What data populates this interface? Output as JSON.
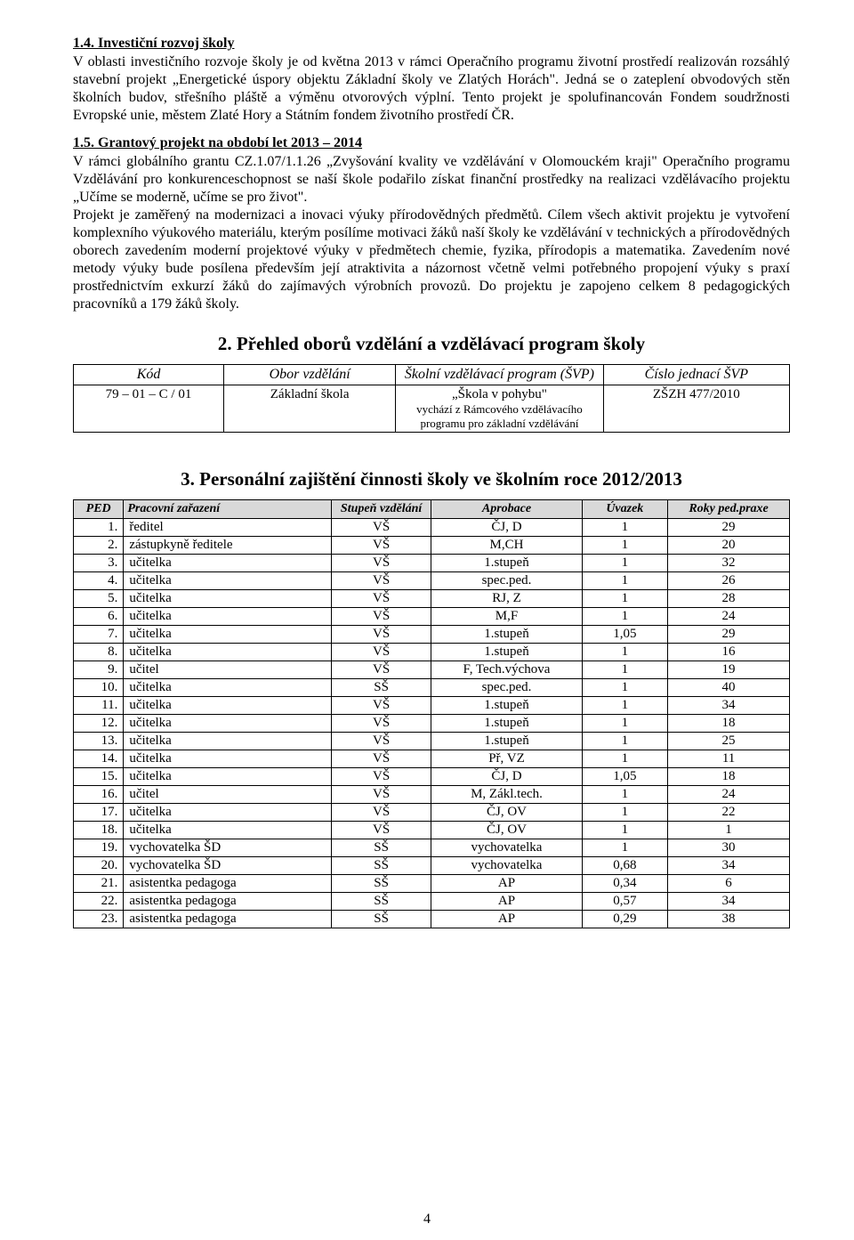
{
  "section14": {
    "heading": "1.4. Investiční rozvoj školy",
    "body": "V oblasti investičního rozvoje školy je od května 2013 v rámci Operačního programu životní prostředí realizován rozsáhlý stavební projekt „Energetické úspory objektu Základní školy ve Zlatých Horách\". Jedná se o zateplení obvodových stěn školních budov, střešního pláště a výměnu otvorových výplní. Tento projekt je spolufinancován Fondem soudržnosti Evropské unie, městem Zlaté Hory a Státním fondem životního prostředí ČR."
  },
  "section15": {
    "heading": "1.5. Grantový projekt na období let 2013 – 2014",
    "body1": "V rámci globálního grantu CZ.1.07/1.1.26 „Zvyšování kvality ve vzdělávání v Olomouckém kraji\" Operačního programu Vzdělávání pro konkurenceschopnost se naší škole podařilo získat finanční prostředky na realizaci vzdělávacího projektu „Učíme se moderně, učíme se pro život\".",
    "body2": "Projekt je zaměřený na modernizaci a inovaci výuky přírodovědných předmětů. Cílem všech aktivit projektu je vytvoření komplexního výukového materiálu, kterým posílíme motivaci žáků naší školy ke vzdělávání v technických a přírodovědných oborech zavedením moderní projektové výuky v předmětech chemie, fyzika, přírodopis a matematika. Zavedením nové metody výuky bude posílena především její atraktivita a názornost včetně velmi potřebného propojení výuky s praxí prostřednictvím exkurzí žáků do zajímavých výrobních provozů. Do projektu je zapojeno celkem 8 pedagogických pracovníků a 179 žáků školy."
  },
  "section2": {
    "heading": "2.  Přehled oborů vzdělání a vzdělávací program školy",
    "header": {
      "kod": "Kód",
      "obor": "Obor vzdělání",
      "svp": "Školní vzdělávací program (ŠVP)",
      "cislo": "Číslo jednací ŠVP"
    },
    "row": {
      "kod": "79 – 01 – C / 01",
      "obor": "Základní škola",
      "svp_main": "„Škola v pohybu\"",
      "svp_sub": "vychází z Rámcového vzdělávacího programu pro základní vzdělávání",
      "cislo": "ZŠZH 477/2010"
    }
  },
  "section3": {
    "heading": "3.  Personální zajištění činnosti školy ve školním roce 2012/2013",
    "header": {
      "ped": "PED",
      "praz": "Pracovní zařazení",
      "stup": "Stupeň vzdělání",
      "apro": "Aprobace",
      "uvaz": "Úvazek",
      "roky": "Roky ped.praxe"
    },
    "rows": [
      {
        "n": "1.",
        "role": "ředitel",
        "stup": "VŠ",
        "apro": "ČJ, D",
        "uvaz": "1",
        "roky": "29"
      },
      {
        "n": "2.",
        "role": "zástupkyně ředitele",
        "stup": "VŠ",
        "apro": "M,CH",
        "uvaz": "1",
        "roky": "20"
      },
      {
        "n": "3.",
        "role": "učitelka",
        "stup": "VŠ",
        "apro": "1.stupeň",
        "uvaz": "1",
        "roky": "32"
      },
      {
        "n": "4.",
        "role": "učitelka",
        "stup": "VŠ",
        "apro": "spec.ped.",
        "uvaz": "1",
        "roky": "26"
      },
      {
        "n": "5.",
        "role": "učitelka",
        "stup": "VŠ",
        "apro": "RJ, Z",
        "uvaz": "1",
        "roky": "28"
      },
      {
        "n": "6.",
        "role": "učitelka",
        "stup": "VŠ",
        "apro": "M,F",
        "uvaz": "1",
        "roky": "24"
      },
      {
        "n": "7.",
        "role": "učitelka",
        "stup": "VŠ",
        "apro": "1.stupeň",
        "uvaz": "1,05",
        "roky": "29"
      },
      {
        "n": "8.",
        "role": "učitelka",
        "stup": "VŠ",
        "apro": "1.stupeň",
        "uvaz": "1",
        "roky": "16"
      },
      {
        "n": "9.",
        "role": "učitel",
        "stup": "VŠ",
        "apro": "F, Tech.výchova",
        "uvaz": "1",
        "roky": "19"
      },
      {
        "n": "10.",
        "role": "učitelka",
        "stup": "SŠ",
        "apro": "spec.ped.",
        "uvaz": "1",
        "roky": "40"
      },
      {
        "n": "11.",
        "role": "učitelka",
        "stup": "VŠ",
        "apro": "1.stupeň",
        "uvaz": "1",
        "roky": "34"
      },
      {
        "n": "12.",
        "role": "učitelka",
        "stup": "VŠ",
        "apro": "1.stupeň",
        "uvaz": "1",
        "roky": "18"
      },
      {
        "n": "13.",
        "role": "učitelka",
        "stup": "VŠ",
        "apro": "1.stupeň",
        "uvaz": "1",
        "roky": "25"
      },
      {
        "n": "14.",
        "role": "učitelka",
        "stup": "VŠ",
        "apro": "Př, VZ",
        "uvaz": "1",
        "roky": "11"
      },
      {
        "n": "15.",
        "role": "učitelka",
        "stup": "VŠ",
        "apro": "ČJ, D",
        "uvaz": "1,05",
        "roky": "18"
      },
      {
        "n": "16.",
        "role": "učitel",
        "stup": "VŠ",
        "apro": "M, Zákl.tech.",
        "uvaz": "1",
        "roky": "24"
      },
      {
        "n": "17.",
        "role": "učitelka",
        "stup": "VŠ",
        "apro": "ČJ, OV",
        "uvaz": "1",
        "roky": "22"
      },
      {
        "n": "18.",
        "role": "učitelka",
        "stup": "VŠ",
        "apro": "ČJ, OV",
        "uvaz": "1",
        "roky": "1"
      },
      {
        "n": "19.",
        "role": "vychovatelka ŠD",
        "stup": "SŠ",
        "apro": "vychovatelka",
        "uvaz": "1",
        "roky": "30"
      },
      {
        "n": "20.",
        "role": "vychovatelka ŠD",
        "stup": "SŠ",
        "apro": "vychovatelka",
        "uvaz": "0,68",
        "roky": "34"
      },
      {
        "n": "21.",
        "role": "asistentka pedagoga",
        "stup": "SŠ",
        "apro": "AP",
        "uvaz": "0,34",
        "roky": "6"
      },
      {
        "n": "22.",
        "role": "asistentka pedagoga",
        "stup": "SŠ",
        "apro": "AP",
        "uvaz": "0,57",
        "roky": "34"
      },
      {
        "n": "23.",
        "role": "asistentka pedagoga",
        "stup": "SŠ",
        "apro": "AP",
        "uvaz": "0,29",
        "roky": "38"
      }
    ]
  },
  "page_number": "4"
}
